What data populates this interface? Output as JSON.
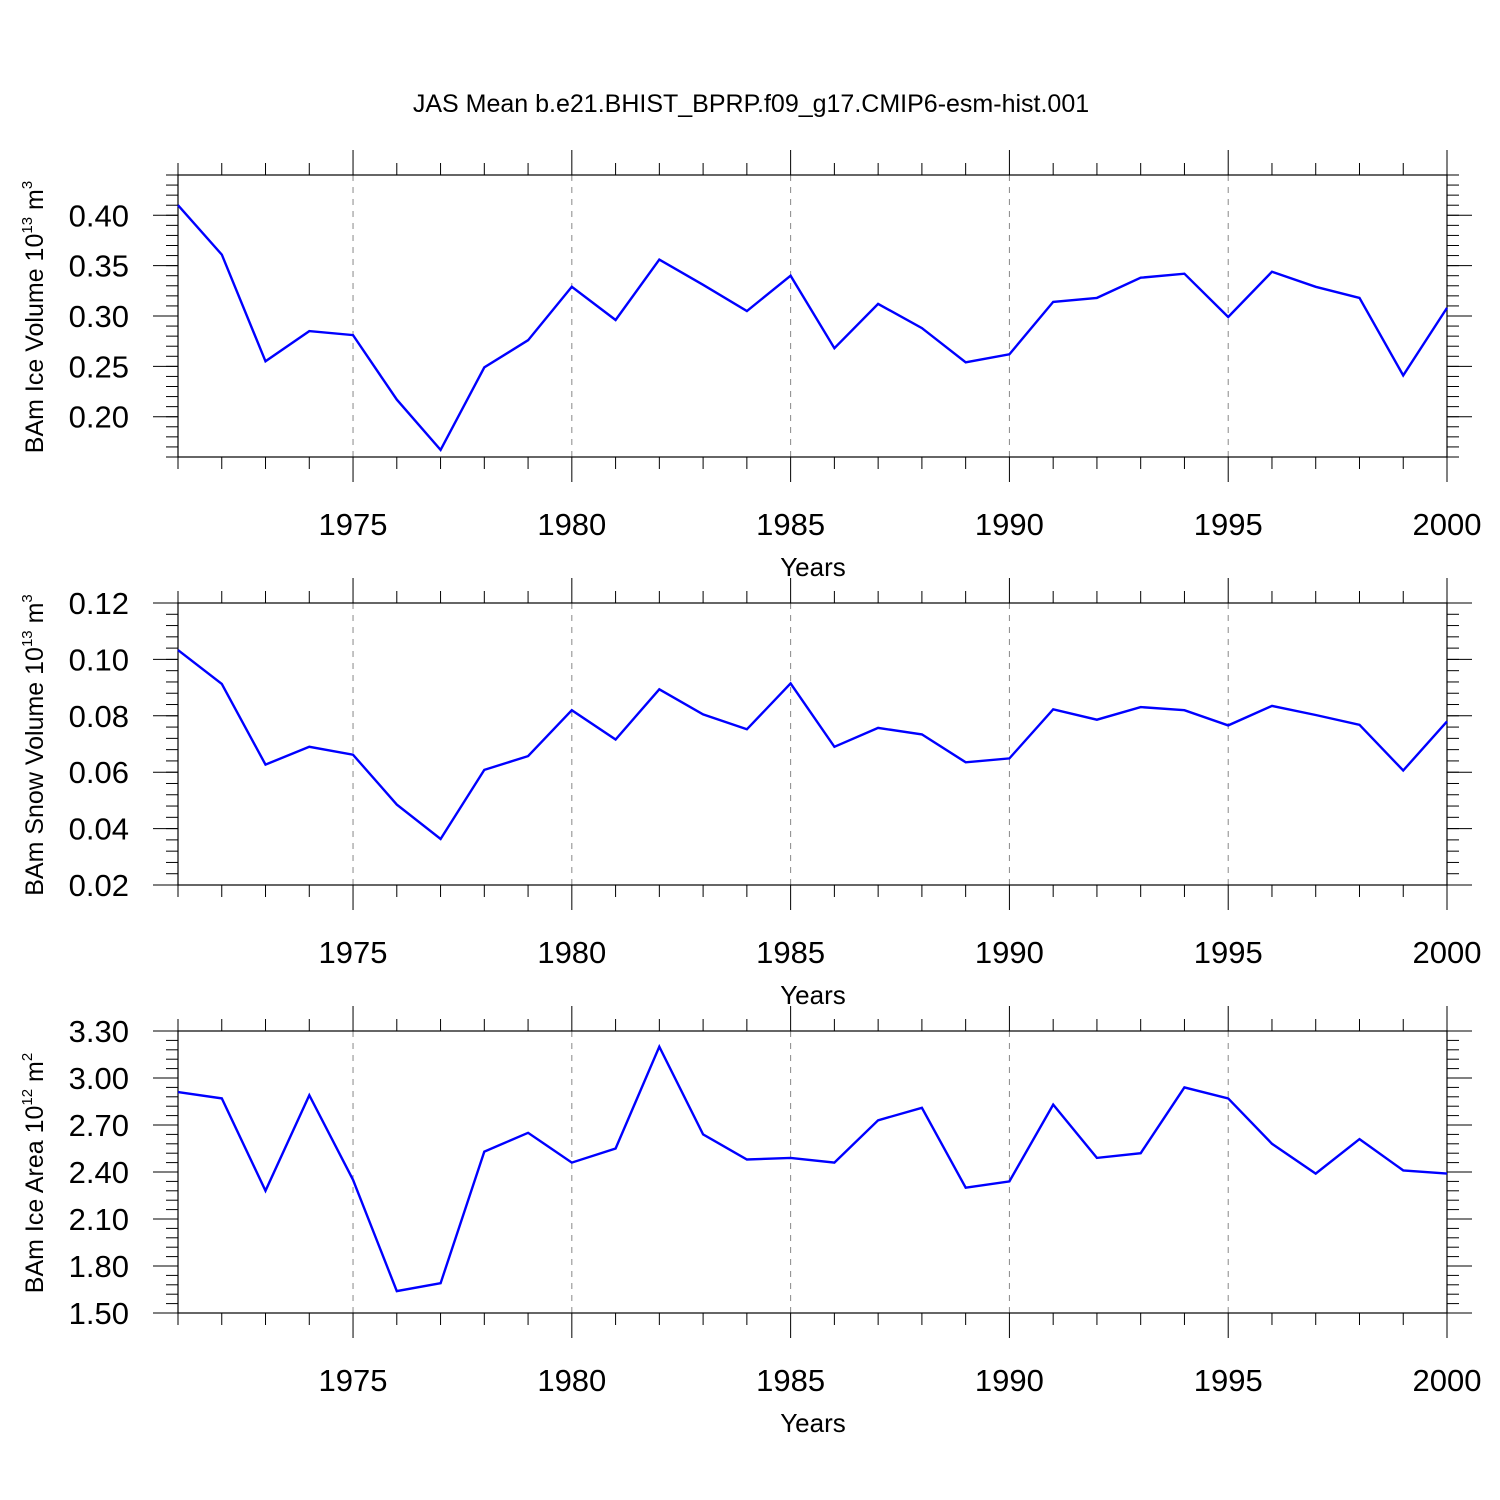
{
  "title": "JAS Mean b.e21.BHIST_BPRP.f09_g17.CMIP6-esm-hist.001",
  "colors": {
    "line": "#0000ff",
    "axis": "#000000",
    "grid": "#888888",
    "background": "#ffffff"
  },
  "chart_data": [
    {
      "type": "line",
      "xlabel": "Years",
      "ylabel": {
        "main": "BAm Ice Volume 10",
        "exp": "13",
        "unit": " m",
        "unit_exp": "3"
      },
      "xlim": [
        1971,
        2000
      ],
      "ylim": [
        0.16,
        0.44
      ],
      "yticks": [
        0.2,
        0.25,
        0.3,
        0.35,
        0.4
      ],
      "ytick_labels": [
        "0.20",
        "0.25",
        "0.30",
        "0.35",
        "0.40"
      ],
      "yminor_step": 0.01,
      "xticks": [
        1975,
        1980,
        1985,
        1990,
        1995,
        2000
      ],
      "xtick_labels": [
        "1975",
        "1980",
        "1985",
        "1990",
        "1995",
        "2000"
      ],
      "grid": "vertical dashed at major x ticks",
      "x": [
        1971,
        1972,
        1973,
        1974,
        1975,
        1976,
        1977,
        1978,
        1979,
        1980,
        1981,
        1982,
        1983,
        1984,
        1985,
        1986,
        1987,
        1988,
        1989,
        1990,
        1991,
        1992,
        1993,
        1994,
        1995,
        1996,
        1997,
        1998,
        1999,
        2000
      ],
      "y": [
        0.41,
        0.361,
        0.255,
        0.285,
        0.281,
        0.217,
        0.167,
        0.249,
        0.276,
        0.329,
        0.296,
        0.356,
        0.331,
        0.305,
        0.34,
        0.268,
        0.312,
        0.288,
        0.254,
        0.262,
        0.314,
        0.318,
        0.338,
        0.342,
        0.299,
        0.344,
        0.329,
        0.318,
        0.241,
        0.308
      ]
    },
    {
      "type": "line",
      "xlabel": "Years",
      "ylabel": {
        "main": "BAm Snow Volume 10",
        "exp": "13",
        "unit": " m",
        "unit_exp": "3"
      },
      "xlim": [
        1971,
        2000
      ],
      "ylim": [
        0.02,
        0.12
      ],
      "yticks": [
        0.02,
        0.04,
        0.06,
        0.08,
        0.1,
        0.12
      ],
      "ytick_labels": [
        "0.02",
        "0.04",
        "0.06",
        "0.08",
        "0.10",
        "0.12"
      ],
      "yminor_step": 0.004,
      "xticks": [
        1975,
        1980,
        1985,
        1990,
        1995,
        2000
      ],
      "xtick_labels": [
        "1975",
        "1980",
        "1985",
        "1990",
        "1995",
        "2000"
      ],
      "grid": "vertical dashed at major x ticks",
      "x": [
        1971,
        1972,
        1973,
        1974,
        1975,
        1976,
        1977,
        1978,
        1979,
        1980,
        1981,
        1982,
        1983,
        1984,
        1985,
        1986,
        1987,
        1988,
        1989,
        1990,
        1991,
        1992,
        1993,
        1994,
        1995,
        1996,
        1997,
        1998,
        1999,
        2000
      ],
      "y": [
        0.1033,
        0.0913,
        0.0627,
        0.069,
        0.0662,
        0.0485,
        0.0363,
        0.0608,
        0.0657,
        0.082,
        0.0716,
        0.0894,
        0.0805,
        0.0752,
        0.0915,
        0.069,
        0.0757,
        0.0734,
        0.0635,
        0.0649,
        0.0823,
        0.0786,
        0.0831,
        0.082,
        0.0766,
        0.0835,
        0.0803,
        0.0768,
        0.0606,
        0.078
      ]
    },
    {
      "type": "line",
      "xlabel": "Years",
      "ylabel": {
        "main": "BAm Ice Area 10",
        "exp": "12",
        "unit": " m",
        "unit_exp": "2"
      },
      "xlim": [
        1971,
        2000
      ],
      "ylim": [
        1.5,
        3.3
      ],
      "yticks": [
        1.5,
        1.8,
        2.1,
        2.4,
        2.7,
        3.0,
        3.3
      ],
      "ytick_labels": [
        "1.50",
        "1.80",
        "2.10",
        "2.40",
        "2.70",
        "3.00",
        "3.30"
      ],
      "yminor_step": 0.06,
      "xticks": [
        1975,
        1980,
        1985,
        1990,
        1995,
        2000
      ],
      "xtick_labels": [
        "1975",
        "1980",
        "1985",
        "1990",
        "1995",
        "2000"
      ],
      "grid": "vertical dashed at major x ticks",
      "x": [
        1971,
        1972,
        1973,
        1974,
        1975,
        1976,
        1977,
        1978,
        1979,
        1980,
        1981,
        1982,
        1983,
        1984,
        1985,
        1986,
        1987,
        1988,
        1989,
        1990,
        1991,
        1992,
        1993,
        1994,
        1995,
        1996,
        1997,
        1998,
        1999,
        2000
      ],
      "y": [
        2.91,
        2.87,
        2.28,
        2.89,
        2.35,
        1.64,
        1.69,
        2.53,
        2.65,
        2.46,
        2.55,
        3.2,
        2.64,
        2.48,
        2.49,
        2.46,
        2.73,
        2.81,
        2.3,
        2.34,
        2.83,
        2.49,
        2.52,
        2.94,
        2.87,
        2.58,
        2.39,
        2.61,
        2.41,
        2.39
      ]
    }
  ]
}
